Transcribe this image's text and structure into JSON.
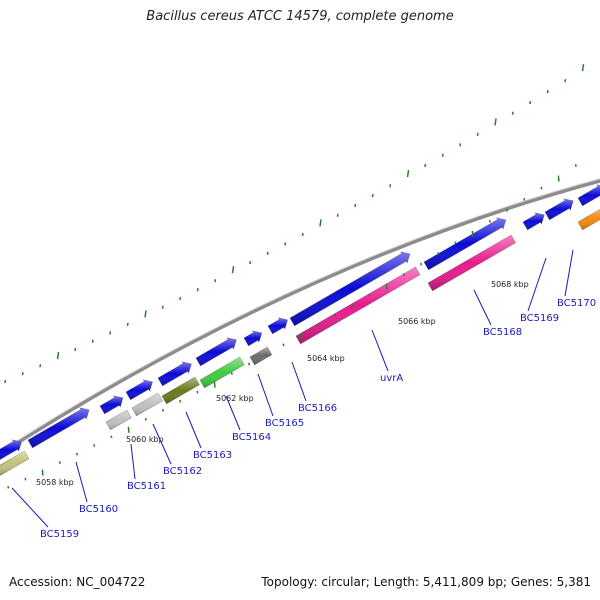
{
  "header": {
    "title": "Bacillus cereus ATCC 14579, complete genome"
  },
  "footer": {
    "accession": "Accession: NC_004722",
    "summary": "Topology: circular; Length: 5,411,809 bp; Genes: 5,381"
  },
  "genome_map": {
    "colors": {
      "backbone": "#8c8c8c",
      "forward_gene": "#0a0ad6",
      "label": "#1a1ab8",
      "tick": "#2e7d2e",
      "uvrA": "#e8198e",
      "BC5162": "#c0c0c0",
      "BC5161": "#c0c0c0",
      "BC5163": "#6b7a1c",
      "BC5164": "#3ecb3e",
      "BC5165": "#6b6b6b",
      "BC5159": "#c2c07a",
      "BC5170": "#f28a0c"
    },
    "kbp_labels": [
      "5058 kbp",
      "5060 kbp",
      "5062 kbp",
      "5064 kbp",
      "5066 kbp",
      "5068 kbp"
    ],
    "gene_labels": [
      "BC5159",
      "BC5160",
      "BC5161",
      "BC5162",
      "BC5163",
      "BC5164",
      "BC5165",
      "BC5166",
      "uvrA",
      "BC5168",
      "BC5169",
      "BC5170"
    ]
  }
}
